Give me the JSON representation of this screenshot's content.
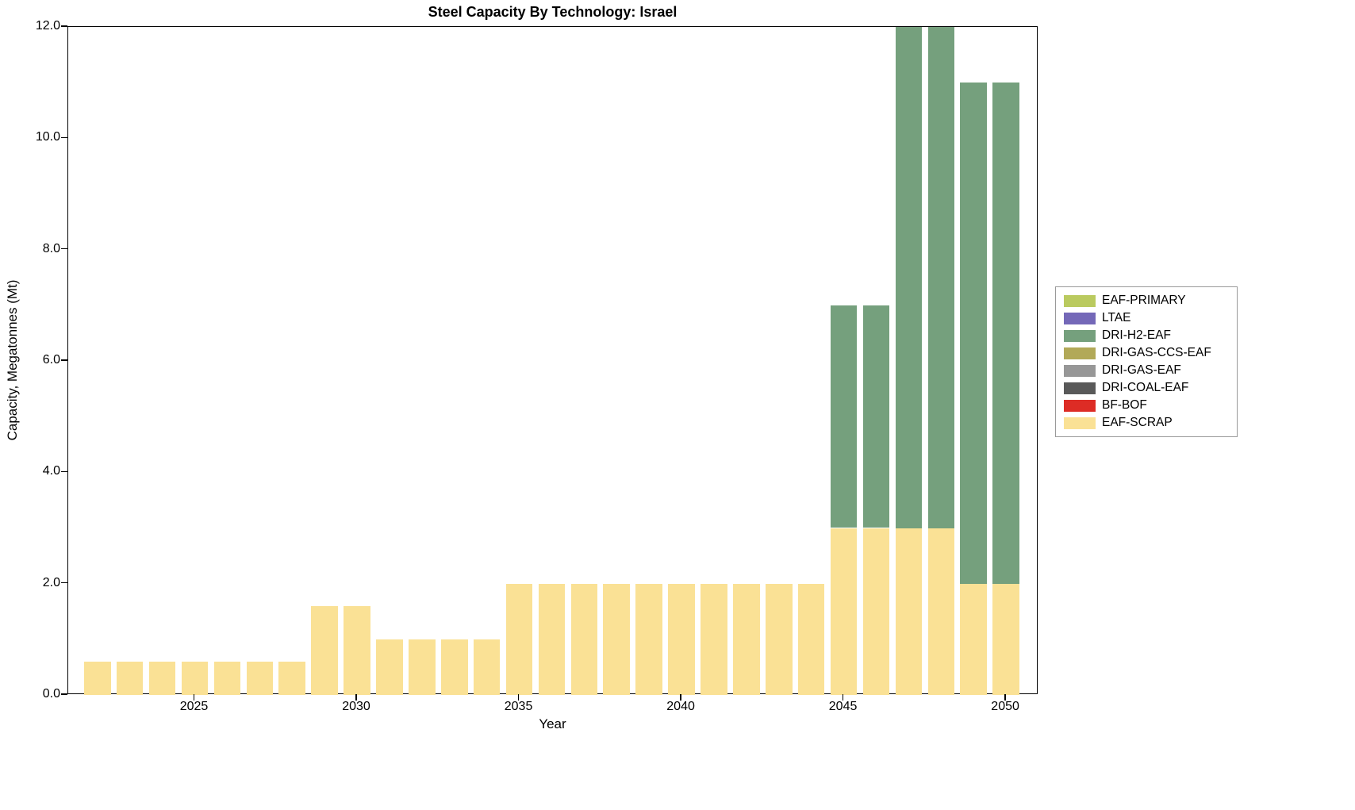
{
  "chart_data": {
    "type": "bar",
    "stacked": true,
    "title": "Steel Capacity By Technology: Israel",
    "xlabel": "Year",
    "ylabel": "Capacity, Megatonnes (Mt)",
    "x": [
      2022,
      2023,
      2024,
      2025,
      2026,
      2027,
      2028,
      2029,
      2030,
      2031,
      2032,
      2033,
      2034,
      2035,
      2036,
      2037,
      2038,
      2039,
      2040,
      2041,
      2042,
      2043,
      2044,
      2045,
      2046,
      2047,
      2048,
      2049,
      2050
    ],
    "series": [
      {
        "name": "EAF-SCRAP",
        "color": "#FAE195",
        "values": [
          0.6,
          0.6,
          0.6,
          0.6,
          0.6,
          0.6,
          0.6,
          1.6,
          1.6,
          1.0,
          1.0,
          1.0,
          1.0,
          2.0,
          2.0,
          2.0,
          2.0,
          2.0,
          2.0,
          2.0,
          2.0,
          2.0,
          2.0,
          3.0,
          3.0,
          3.0,
          3.0,
          2.0,
          2.0
        ]
      },
      {
        "name": "DRI-H2-EAF",
        "color": "#75A07D",
        "values": [
          0,
          0,
          0,
          0,
          0,
          0,
          0,
          0,
          0,
          0,
          0,
          0,
          0,
          0,
          0,
          0,
          0,
          0,
          0,
          0,
          0,
          0,
          0,
          4.0,
          4.0,
          9.0,
          9.0,
          9.0,
          9.0
        ]
      }
    ],
    "xlim": [
      2021.1,
      2051.0
    ],
    "ylim": [
      0,
      12
    ],
    "bar_width": 0.82,
    "xticks": {
      "values": [
        2025,
        2030,
        2035,
        2040,
        2045,
        2050
      ],
      "labels": [
        "2025",
        "2030",
        "2035",
        "2040",
        "2045",
        "2050"
      ]
    },
    "yticks": {
      "values": [
        0,
        2,
        4,
        6,
        8,
        10,
        12
      ],
      "labels": [
        "0.0",
        "2.0",
        "4.0",
        "6.0",
        "8.0",
        "10.0",
        "12.0"
      ]
    },
    "grid": false,
    "legend_position": "right-outside"
  },
  "legend": {
    "items": [
      {
        "label": "EAF-PRIMARY",
        "color": "#BACA5F"
      },
      {
        "label": "LTAE",
        "color": "#7468B8"
      },
      {
        "label": "DRI-H2-EAF",
        "color": "#75A07D"
      },
      {
        "label": "DRI-GAS-CCS-EAF",
        "color": "#B2A958"
      },
      {
        "label": "DRI-GAS-EAF",
        "color": "#979797"
      },
      {
        "label": "DRI-COAL-EAF",
        "color": "#595959"
      },
      {
        "label": "BF-BOF",
        "color": "#DD2C25"
      },
      {
        "label": "EAF-SCRAP",
        "color": "#FAE195"
      }
    ]
  }
}
